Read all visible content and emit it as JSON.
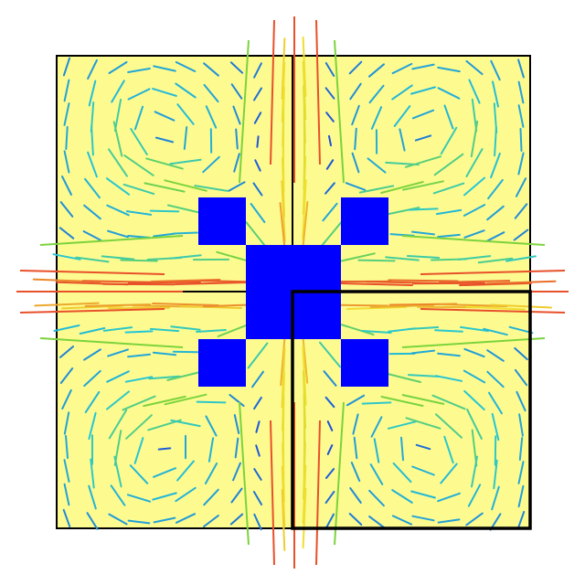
{
  "colors": {
    "background": "#ffffff",
    "panel_fill": "#fdfb90",
    "panel_border": "#000000",
    "obstacle": "#0000ff",
    "vector_slow": "#1c3fd8",
    "vector_mid": "#25c6d6",
    "vector_medium": "#7cd33c",
    "vector_fast": "#f0e030",
    "vector_fastest": "#e8502a"
  },
  "grid": {
    "panels": [
      {
        "id": "panel-top-left"
      },
      {
        "id": "panel-top-right"
      },
      {
        "id": "panel-bottom-left"
      },
      {
        "id": "panel-bottom-right"
      }
    ],
    "highlighted_panel": "panel-bottom-right"
  },
  "obstacles": [
    {
      "id": "obstacle-inner-top-left"
    },
    {
      "id": "obstacle-inner-top-right"
    },
    {
      "id": "obstacle-inner-bottom-left"
    },
    {
      "id": "obstacle-inner-bottom-right"
    },
    {
      "id": "obstacle-outer-top-left"
    },
    {
      "id": "obstacle-outer-top-right"
    },
    {
      "id": "obstacle-outer-bottom-left"
    },
    {
      "id": "obstacle-outer-bottom-right"
    }
  ],
  "field": {
    "description_visible": false,
    "symmetry": "four-fold",
    "style": "velocity vector glyphs colored by magnitude"
  }
}
